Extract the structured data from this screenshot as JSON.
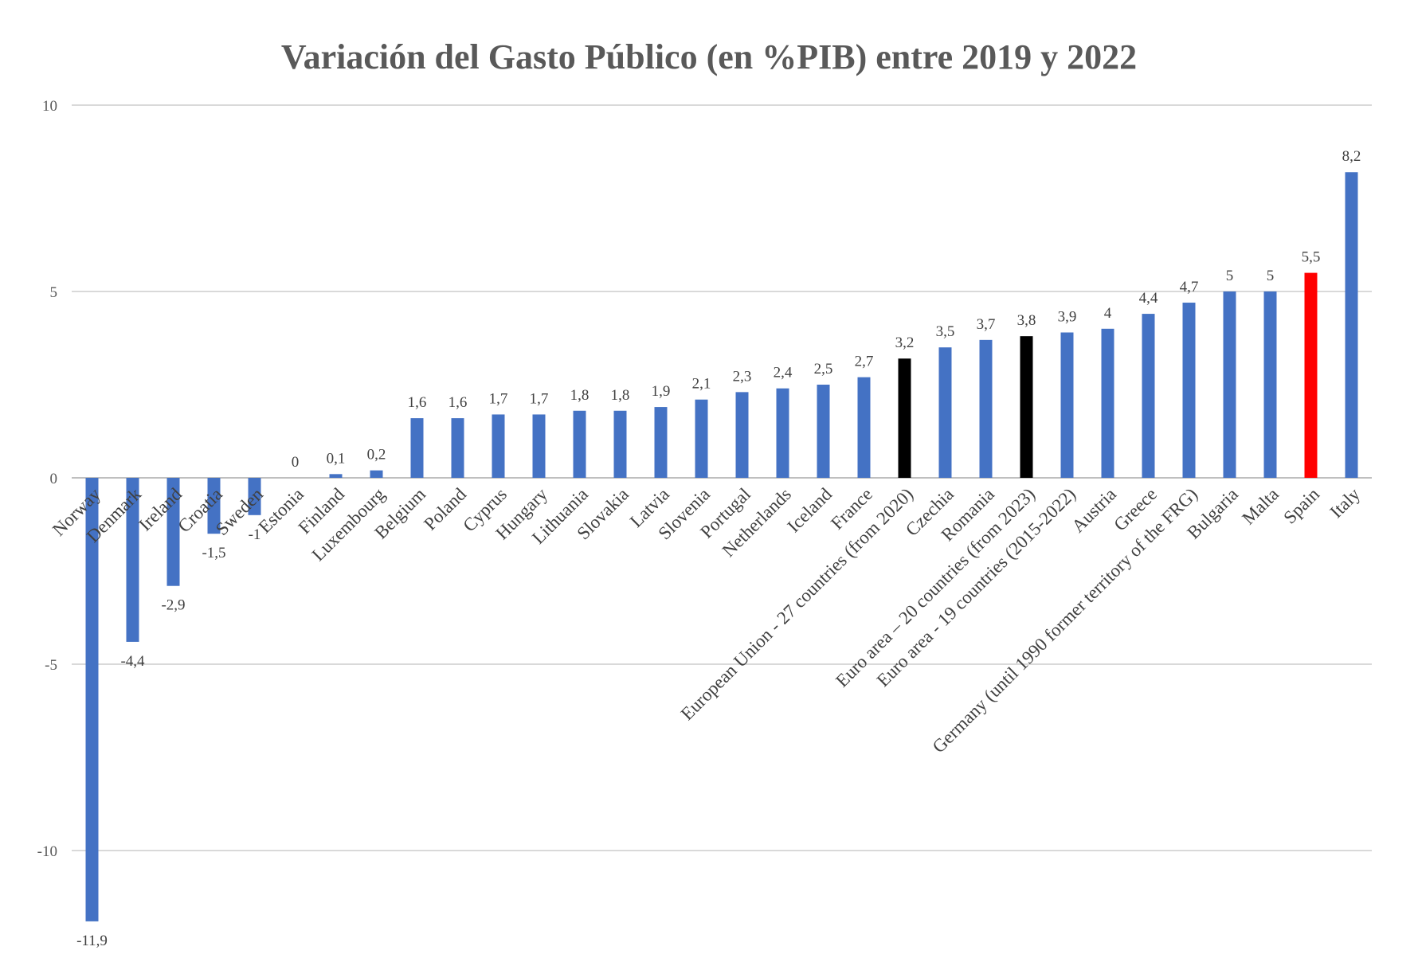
{
  "chart_data": {
    "type": "bar",
    "title": "Variación del Gasto Público (en %PIB) entre 2019 y 2022",
    "xlabel": "",
    "ylabel": "",
    "ylim": [
      -12,
      10
    ],
    "yticks": [
      -10,
      -5,
      0,
      5,
      10
    ],
    "ytick_labels": [
      "-10",
      "-5",
      "0",
      "5",
      "10"
    ],
    "grid": true,
    "legend": "none",
    "colors": {
      "default": "#4472c4",
      "highlight_black": "#000000",
      "highlight_red": "#ff0000"
    },
    "categories": [
      "Norway",
      "Denmark",
      "Ireland",
      "Croatia",
      "Sweden",
      "Estonia",
      "Finland",
      "Luxembourg",
      "Belgium",
      "Poland",
      "Cyprus",
      "Hungary",
      "Lithuania",
      "Slovakia",
      "Latvia",
      "Slovenia",
      "Portugal",
      "Netherlands",
      "Iceland",
      "France",
      "European Union - 27 countries (from 2020)",
      "Czechia",
      "Romania",
      "Euro area – 20 countries (from 2023)",
      "Euro area - 19 countries  (2015-2022)",
      "Austria",
      "Greece",
      "Germany (until 1990 former territory of the FRG)",
      "Bulgaria",
      "Malta",
      "Spain",
      "Italy"
    ],
    "values": [
      -11.9,
      -4.4,
      -2.9,
      -1.5,
      -1,
      0,
      0.1,
      0.2,
      1.6,
      1.6,
      1.7,
      1.7,
      1.8,
      1.8,
      1.9,
      2.1,
      2.3,
      2.4,
      2.5,
      2.7,
      3.2,
      3.5,
      3.7,
      3.8,
      3.9,
      4,
      4.4,
      4.7,
      5,
      5,
      5.5,
      8.2
    ],
    "value_labels": [
      "-11,9",
      "-4,4",
      "-2,9",
      "-1,5",
      "-1",
      "0",
      "0,1",
      "0,2",
      "1,6",
      "1,6",
      "1,7",
      "1,7",
      "1,8",
      "1,8",
      "1,9",
      "2,1",
      "2,3",
      "2,4",
      "2,5",
      "2,7",
      "3,2",
      "3,5",
      "3,7",
      "3,8",
      "3,9",
      "4",
      "4,4",
      "4,7",
      "5",
      "5",
      "5,5",
      "8,2"
    ],
    "bar_colors": [
      "#4472c4",
      "#4472c4",
      "#4472c4",
      "#4472c4",
      "#4472c4",
      "#4472c4",
      "#4472c4",
      "#4472c4",
      "#4472c4",
      "#4472c4",
      "#4472c4",
      "#4472c4",
      "#4472c4",
      "#4472c4",
      "#4472c4",
      "#4472c4",
      "#4472c4",
      "#4472c4",
      "#4472c4",
      "#4472c4",
      "#000000",
      "#4472c4",
      "#4472c4",
      "#000000",
      "#4472c4",
      "#4472c4",
      "#4472c4",
      "#4472c4",
      "#4472c4",
      "#4472c4",
      "#ff0000",
      "#4472c4"
    ]
  }
}
